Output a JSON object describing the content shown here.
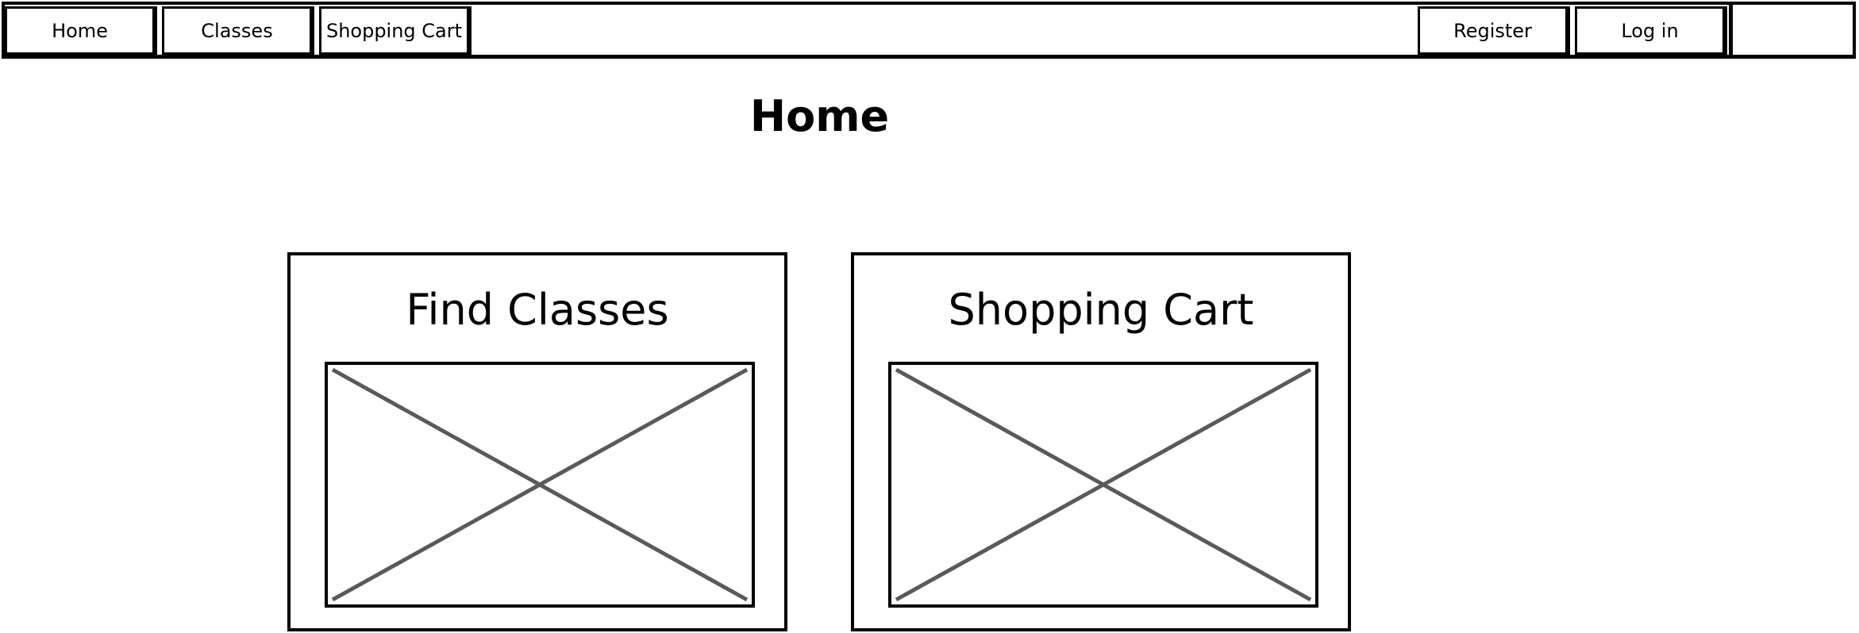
{
  "nav": {
    "home": "Home",
    "classes": "Classes",
    "shopping_cart": "Shopping Cart",
    "register": "Register",
    "login": "Log in"
  },
  "page": {
    "title": "Home"
  },
  "cards": [
    {
      "title": "Find Classes",
      "image": "image-placeholder"
    },
    {
      "title": "Shopping Cart",
      "image": "image-placeholder"
    }
  ],
  "colors": {
    "stroke": "#000000",
    "placeholder_cross": "#5a5a5a",
    "background": "#ffffff"
  }
}
